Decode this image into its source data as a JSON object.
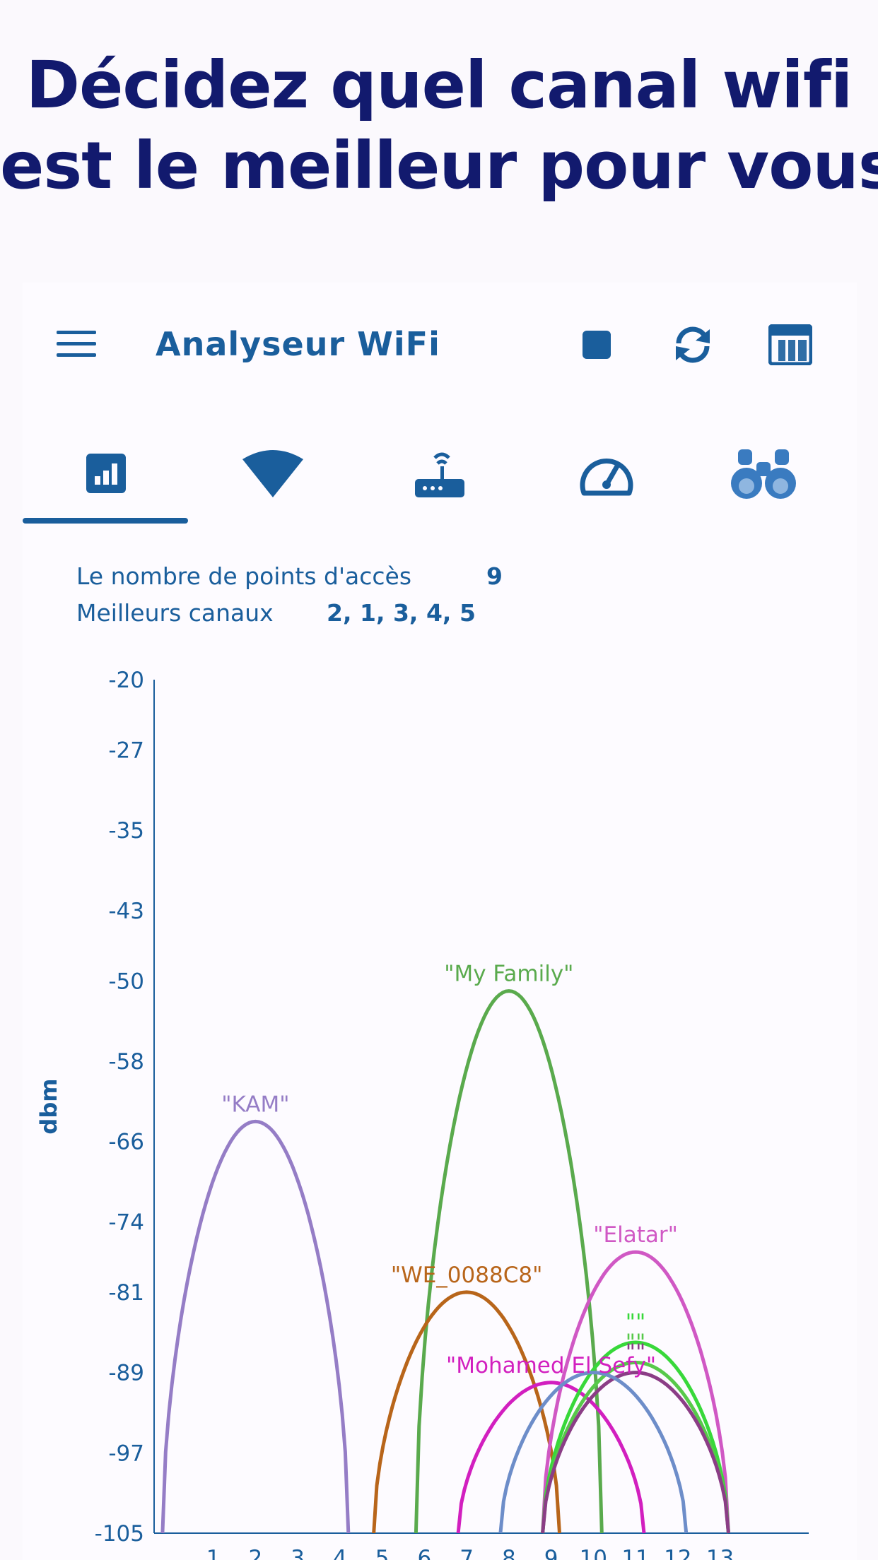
{
  "headline": {
    "line1": "Décidez quel canal wifi",
    "line2": "est le meilleur pour vous"
  },
  "toolbar": {
    "title": "Analyseur WiFi",
    "menu_icon": "menu-icon",
    "stop_icon": "stop-icon",
    "refresh_icon": "refresh-icon",
    "table_icon": "table-icon"
  },
  "tabs": [
    {
      "icon": "channel-graph-icon",
      "selected": true
    },
    {
      "icon": "wifi-signal-icon",
      "selected": false
    },
    {
      "icon": "router-icon",
      "selected": false
    },
    {
      "icon": "speedometer-icon",
      "selected": false
    },
    {
      "icon": "binoculars-icon",
      "selected": false
    }
  ],
  "info": {
    "ap_count_label": "Le nombre de points d'accès",
    "ap_count_value": "9",
    "best_channels_label": "Meilleurs canaux",
    "best_channels_value": "2, 1, 3, 4, 5"
  },
  "colors": {
    "headline": "#121a6e",
    "accent": "#1a5e9c",
    "background": "#fdfbff"
  },
  "chart_data": {
    "type": "line",
    "ylabel": "dbm",
    "xlabel": "",
    "ylim": [
      -105,
      -20
    ],
    "yticks": [
      "-20",
      "-27",
      "-35",
      "-43",
      "-50",
      "-58",
      "-66",
      "-74",
      "-81",
      "-89",
      "-97",
      "-105"
    ],
    "xticks": [
      "1",
      "2",
      "3",
      "4",
      "5",
      "6",
      "7",
      "8",
      "9",
      "10",
      "11",
      "12",
      "13"
    ],
    "xlim": [
      -0.4,
      15.1
    ],
    "series": [
      {
        "name": "\"KAM\"",
        "channel": 2,
        "peak_dbm": -64,
        "color": "#957dc6"
      },
      {
        "name": "\"My Family\"",
        "channel": 8,
        "peak_dbm": -51,
        "color": "#5aaa4d"
      },
      {
        "name": "\"WE_0088C8\"",
        "channel": 7,
        "peak_dbm": -81,
        "color": "#b8651a"
      },
      {
        "name": "\"Mohamed El Sefy\"",
        "channel": 9,
        "peak_dbm": -90,
        "color": "#d21fbf"
      },
      {
        "name": "\"Elatar\"",
        "channel": 11,
        "peak_dbm": -77,
        "color": "#d058c4"
      },
      {
        "name": "\"\"",
        "channel": 11,
        "peak_dbm": -86,
        "color": "#38d83a"
      },
      {
        "name": "\"\"",
        "channel": 11,
        "peak_dbm": -88,
        "color": "#57c94a"
      },
      {
        "name": "\"\"",
        "channel": 11,
        "peak_dbm": -89,
        "color": "#8b3d86"
      },
      {
        "name": "",
        "channel": 10,
        "peak_dbm": -89,
        "color": "#6d8dc9"
      }
    ]
  }
}
